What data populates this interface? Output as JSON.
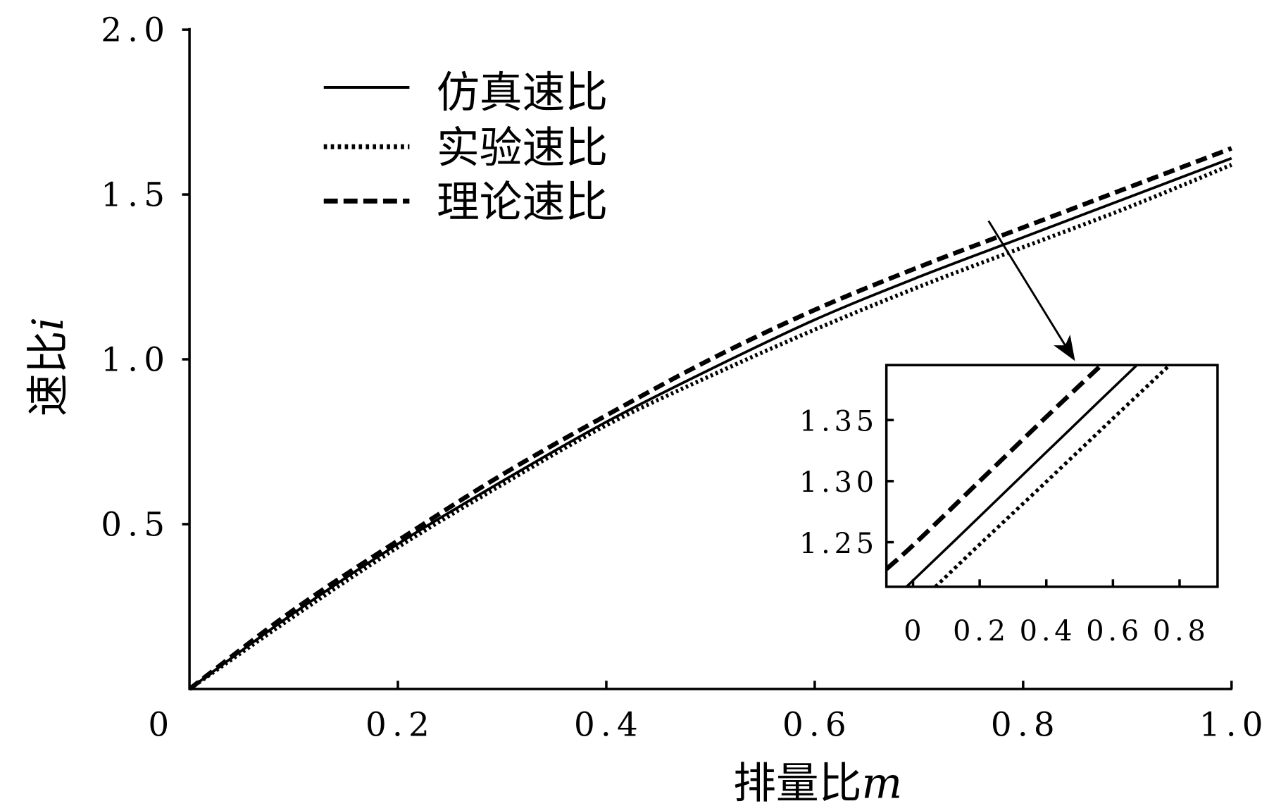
{
  "colors": {
    "foreground": "#000000",
    "background": "#ffffff"
  },
  "chart_data": [
    {
      "type": "line",
      "xlabel": "排量比",
      "xlabel_variable": "m",
      "ylabel": "速比",
      "ylabel_variable": "i",
      "xlim": [
        0,
        1.0
      ],
      "ylim": [
        0,
        2.0
      ],
      "xticks": [
        0,
        0.2,
        0.4,
        0.6,
        0.8,
        1.0
      ],
      "xtick_labels": [
        "0",
        "0.2",
        "0.4",
        "0.6",
        "0.8",
        "1.0"
      ],
      "yticks": [
        0.5,
        1.0,
        1.5,
        2.0
      ],
      "ytick_labels": [
        "0.5",
        "1.0",
        "1.5",
        "2.0"
      ],
      "grid": false,
      "legend_position": "top-left",
      "x": [
        0,
        0.1,
        0.2,
        0.3,
        0.4,
        0.5,
        0.6,
        0.7,
        0.8,
        0.9,
        1.0
      ],
      "series": [
        {
          "name": "仿真速比",
          "style": "solid",
          "values": [
            0,
            0.23,
            0.44,
            0.63,
            0.81,
            0.97,
            1.12,
            1.25,
            1.37,
            1.49,
            1.61
          ]
        },
        {
          "name": "实验速比",
          "style": "dotted",
          "values": [
            0,
            0.22,
            0.43,
            0.62,
            0.8,
            0.95,
            1.09,
            1.22,
            1.34,
            1.46,
            1.59
          ]
        },
        {
          "name": "理论速比",
          "style": "dashed",
          "values": [
            0,
            0.24,
            0.45,
            0.65,
            0.83,
            1.0,
            1.15,
            1.28,
            1.4,
            1.52,
            1.64
          ]
        }
      ]
    },
    {
      "type": "line",
      "xlim": [
        -0.08,
        0.914
      ],
      "ylim": [
        1.2135,
        1.395
      ],
      "xticks": [
        0,
        0.2,
        0.4,
        0.6,
        0.8
      ],
      "xtick_labels": [
        "0",
        "0.2",
        "0.4",
        "0.6",
        "0.8"
      ],
      "yticks": [
        1.25,
        1.3,
        1.35
      ],
      "ytick_labels": [
        "1.25",
        "1.30",
        "1.35"
      ],
      "grid": false,
      "series": [
        {
          "style": "dashed",
          "x": [
            -0.08,
            0.01,
            0.2,
            0.39,
            0.565
          ],
          "values": [
            1.228,
            1.25,
            1.3,
            1.35,
            1.395
          ]
        },
        {
          "style": "dotted",
          "x": [
            0.067,
            0.207,
            0.402,
            0.595,
            0.77
          ],
          "values": [
            1.2135,
            1.25,
            1.3,
            1.35,
            1.395
          ]
        },
        {
          "style": "solid",
          "x": [
            -0.02,
            0.12,
            0.31,
            0.5,
            0.672
          ],
          "values": [
            1.2135,
            1.25,
            1.3,
            1.35,
            1.395
          ]
        }
      ]
    }
  ]
}
